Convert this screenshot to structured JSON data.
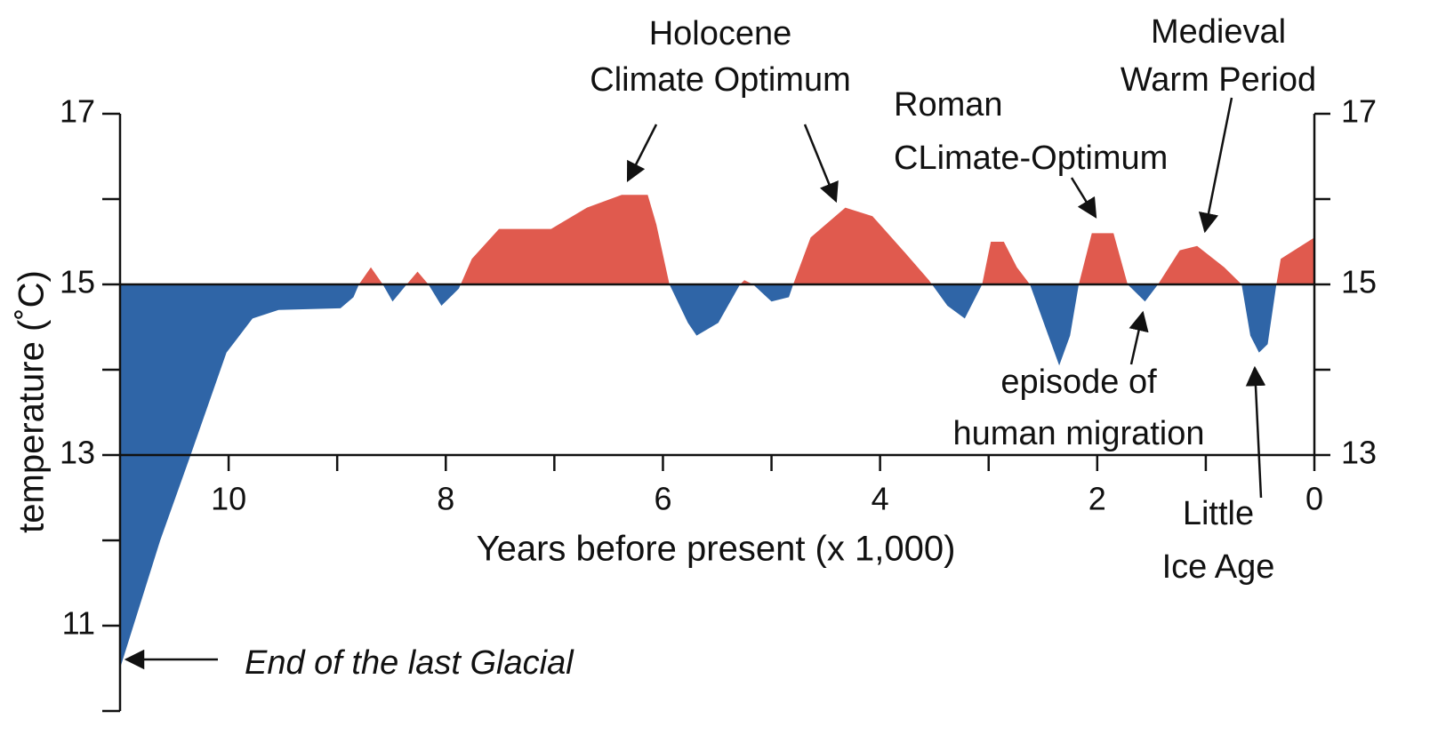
{
  "chart_data": {
    "type": "area",
    "x_label": "Years before present (x 1,000)",
    "y_label": "temperature (˚C)",
    "x": [
      11.0,
      10.63,
      10.35,
      10.02,
      9.78,
      9.54,
      8.97,
      8.85,
      8.8,
      8.69,
      8.58,
      8.49,
      8.36,
      8.26,
      8.16,
      8.04,
      7.88,
      7.76,
      7.51,
      7.03,
      6.7,
      6.38,
      6.14,
      6.06,
      5.94,
      5.77,
      5.69,
      5.49,
      5.29,
      5.25,
      5.17,
      5.0,
      4.84,
      4.8,
      4.64,
      4.32,
      4.07,
      3.79,
      3.55,
      3.38,
      3.22,
      3.06,
      2.98,
      2.86,
      2.74,
      2.62,
      2.45,
      2.35,
      2.25,
      2.17,
      2.05,
      1.85,
      1.72,
      1.56,
      1.44,
      1.24,
      1.08,
      0.83,
      0.67,
      0.59,
      0.51,
      0.43,
      0.35,
      0.31,
      0.0
    ],
    "values": [
      10.5,
      12.0,
      13.0,
      14.2,
      14.6,
      14.7,
      14.72,
      14.85,
      15.0,
      15.2,
      15.0,
      14.8,
      15.0,
      15.15,
      15.0,
      14.75,
      14.95,
      15.3,
      15.65,
      15.65,
      15.9,
      16.05,
      16.05,
      15.7,
      15.0,
      14.55,
      14.4,
      14.55,
      15.0,
      15.05,
      15.0,
      14.8,
      14.85,
      15.0,
      15.55,
      15.9,
      15.8,
      15.4,
      15.05,
      14.75,
      14.6,
      15.0,
      15.5,
      15.5,
      15.2,
      15.0,
      14.4,
      14.05,
      14.4,
      15.0,
      15.6,
      15.6,
      15.0,
      14.8,
      15.0,
      15.4,
      15.45,
      15.2,
      15.0,
      14.4,
      14.2,
      14.3,
      15.0,
      15.3,
      15.55
    ],
    "baseline": 15,
    "color_above": "#e05a4e",
    "color_below": "#2f65a7",
    "xlim": [
      11,
      0
    ],
    "xticks": [
      10,
      8,
      6,
      4,
      2,
      0
    ],
    "xminor_ticks": [
      9,
      7,
      5,
      3,
      1
    ],
    "x_axis_at": 13,
    "ylim": [
      10,
      17
    ],
    "yticks": [
      11,
      13,
      15,
      17
    ],
    "yminor_ticks": [
      10,
      12,
      14,
      16
    ],
    "y2lim": [
      13,
      17
    ],
    "y2ticks": [
      13,
      15,
      17
    ],
    "y2minor_ticks": [
      14,
      16
    ],
    "annotations": [
      {
        "lines": [
          "Holocene",
          "Climate Optimum"
        ]
      },
      {
        "lines": [
          "Roman",
          "CLimate-Optimum"
        ]
      },
      {
        "lines": [
          "Medieval",
          "Warm Period"
        ]
      },
      {
        "lines": [
          "episode of",
          "human migration"
        ]
      },
      {
        "lines": [
          "Little",
          "Ice Age"
        ]
      },
      {
        "lines": [
          "End of the last Glacial"
        ]
      }
    ]
  }
}
